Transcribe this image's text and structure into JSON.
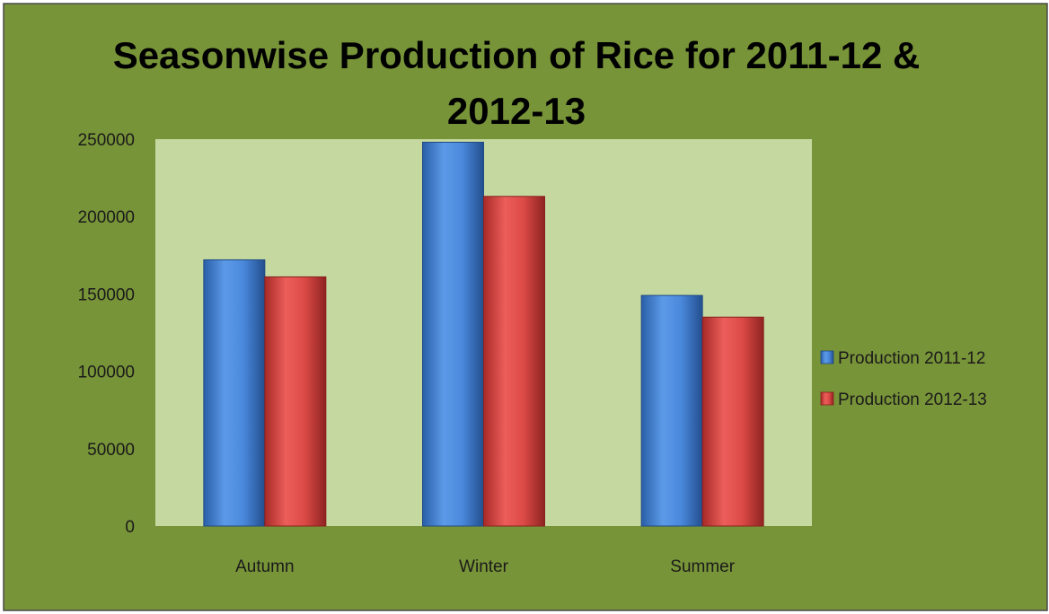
{
  "chart_data": {
    "type": "bar",
    "title_lines": [
      "Seasonwise Production of Rice for 2011-12 &",
      "2012-13"
    ],
    "categories": [
      "Autumn",
      "Winter",
      "Summer"
    ],
    "series": [
      {
        "name": "Production 2011-12",
        "values": [
          172000,
          248000,
          149000
        ],
        "color": "#3d7fd6"
      },
      {
        "name": "Production 2012-13",
        "values": [
          161000,
          213000,
          135000
        ],
        "color": "#d9403e"
      }
    ],
    "ylim": [
      0,
      250000
    ],
    "yticks": [
      0,
      50000,
      100000,
      150000,
      200000,
      250000
    ],
    "grid": false,
    "legend_position": "right",
    "colors": {
      "frame": "#789438",
      "plot_area": "#c4d89f",
      "border": "#4a4a4a"
    }
  }
}
